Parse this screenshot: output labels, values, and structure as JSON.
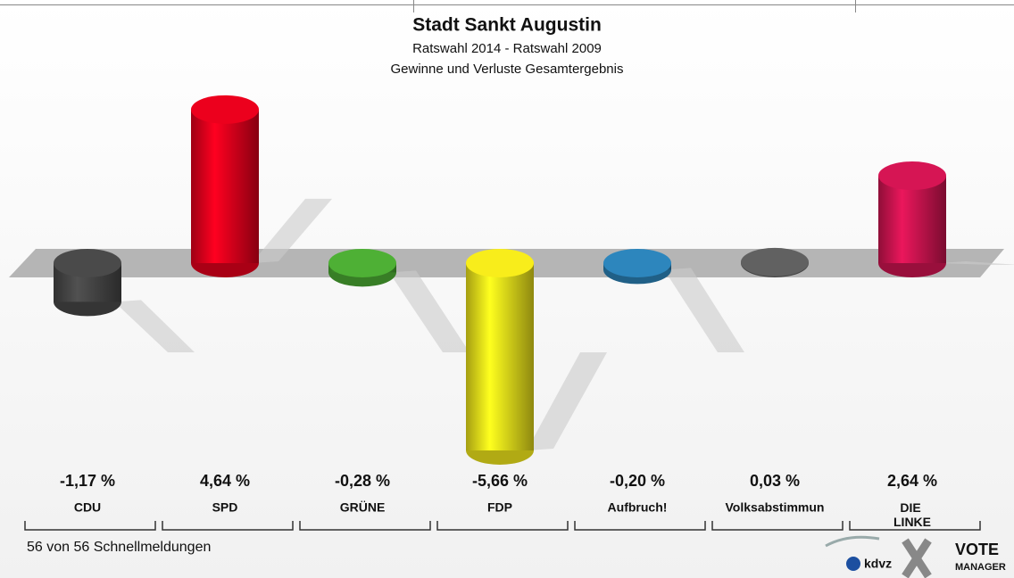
{
  "chart_data": {
    "type": "bar3d",
    "title": "Stadt Sankt Augustin",
    "subtitle": "Ratswahl 2014 - Ratswahl 2009",
    "subtitle2": "Gewinne und Verluste Gesamtergebnis",
    "categories": [
      "CDU",
      "SPD",
      "GRÜNE",
      "FDP",
      "Aufbruch!",
      "Volksabstimmun",
      "DIE LINKE"
    ],
    "values": [
      -1.17,
      4.64,
      -0.28,
      -5.66,
      -0.2,
      0.03,
      2.64
    ],
    "value_labels": [
      "-1,17 %",
      "4,64 %",
      "-0,28 %",
      "-5,66 %",
      "-0,20 %",
      "0,03 %",
      "2,64 %"
    ],
    "colors": [
      "#464646",
      "#e1001c",
      "#4aa832",
      "#ece21a",
      "#2b80b4",
      "#5c5c5c",
      "#cc1450"
    ],
    "footer": "56 von 56 Schnellmeldungen",
    "logo": {
      "left": "kdvz",
      "right_top": "VOTE",
      "right_bottom": "MANAGER"
    }
  }
}
